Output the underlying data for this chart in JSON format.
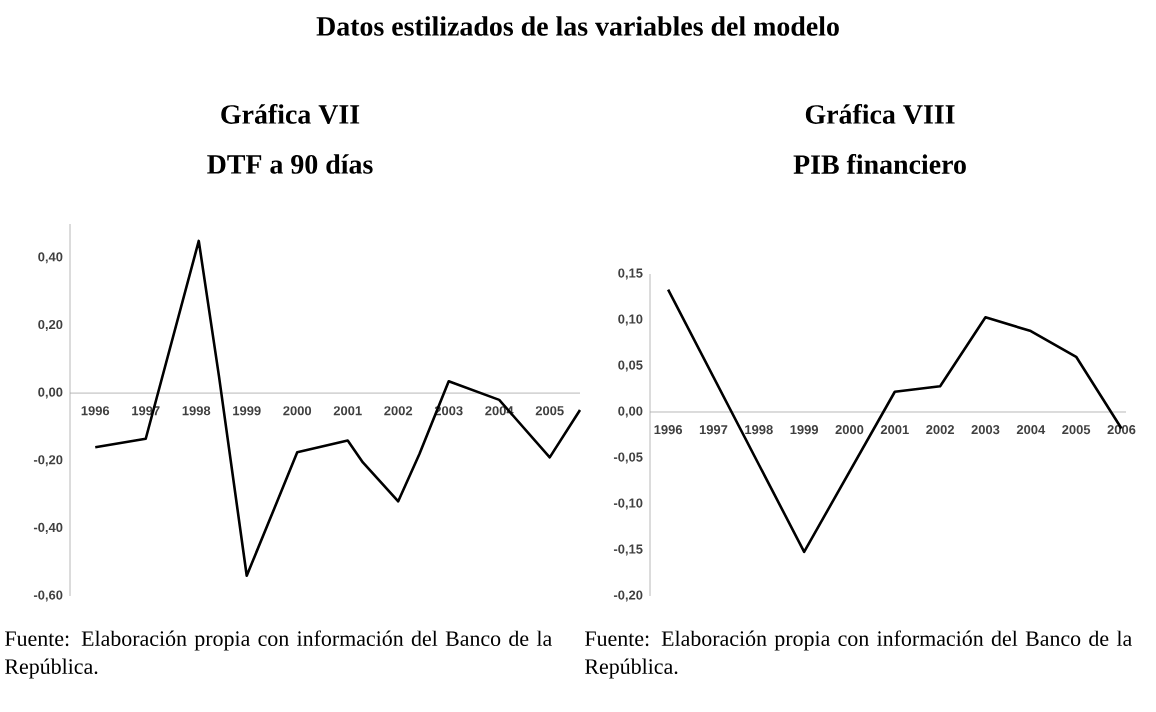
{
  "chart_data": [
    {
      "type": "line",
      "title": "Gráfica VII",
      "subtitle": "DTF a 90 días",
      "annotations": [
        "Datos estilizados de las variables del modelo",
        "Fuente: Elaboración propia con información del Banco de la República."
      ],
      "x": [
        1996,
        1997,
        1998.05,
        1998.45,
        1999,
        1999.44,
        2000,
        2001,
        2001.3,
        2002,
        2002.42,
        2003,
        2004,
        2005,
        2005.6
      ],
      "values": [
        -0.16,
        -0.135,
        0.45,
        0.05,
        -0.54,
        -0.38,
        -0.175,
        -0.14,
        -0.205,
        -0.32,
        -0.18,
        0.035,
        -0.02,
        -0.19,
        -0.05
      ],
      "color": "#000000",
      "xlim": [
        1995.5,
        2005.6
      ],
      "ylim": [
        -0.6,
        0.5
      ],
      "xticks": [
        1996,
        1997,
        1998,
        1999,
        2000,
        2001,
        2002,
        2003,
        2004,
        2005
      ],
      "yticks": [
        {
          "value": -0.6,
          "label": "-0,60"
        },
        {
          "value": -0.4,
          "label": "-0,40"
        },
        {
          "value": -0.2,
          "label": "-0,20"
        },
        {
          "value": 0,
          "label": "0,00"
        },
        {
          "value": 0.2,
          "label": "0,20"
        },
        {
          "value": 0.4,
          "label": "0,40"
        }
      ]
    },
    {
      "type": "line",
      "title": "Gráfica VIII",
      "subtitle": "PIB financiero",
      "annotations": [
        "Fuente: Elaboración propia con información del Banco de la República."
      ],
      "x": [
        1996,
        1997,
        1998,
        1999,
        2000,
        2001,
        2002,
        2003,
        2004,
        2005,
        2006
      ],
      "values": [
        0.133,
        null,
        null,
        -0.152,
        null,
        0.022,
        0.028,
        0.103,
        0.088,
        0.06,
        -0.018
      ],
      "color": "#000000",
      "xlim": [
        1995.6,
        2006.1
      ],
      "ylim": [
        -0.2,
        0.15
      ],
      "xticks": [
        1996,
        1997,
        1998,
        1999,
        2000,
        2001,
        2002,
        2003,
        2004,
        2005,
        2006
      ],
      "yticks": [
        {
          "value": -0.2,
          "label": "-0,20"
        },
        {
          "value": -0.15,
          "label": "-0,15"
        },
        {
          "value": -0.1,
          "label": "-0,10"
        },
        {
          "value": -0.05,
          "label": "-0,05"
        },
        {
          "value": 0,
          "label": "0,00"
        },
        {
          "value": 0.05,
          "label": "0,05"
        },
        {
          "value": 0.1,
          "label": "0,10"
        },
        {
          "value": 0.15,
          "label": "0,15"
        }
      ]
    }
  ]
}
